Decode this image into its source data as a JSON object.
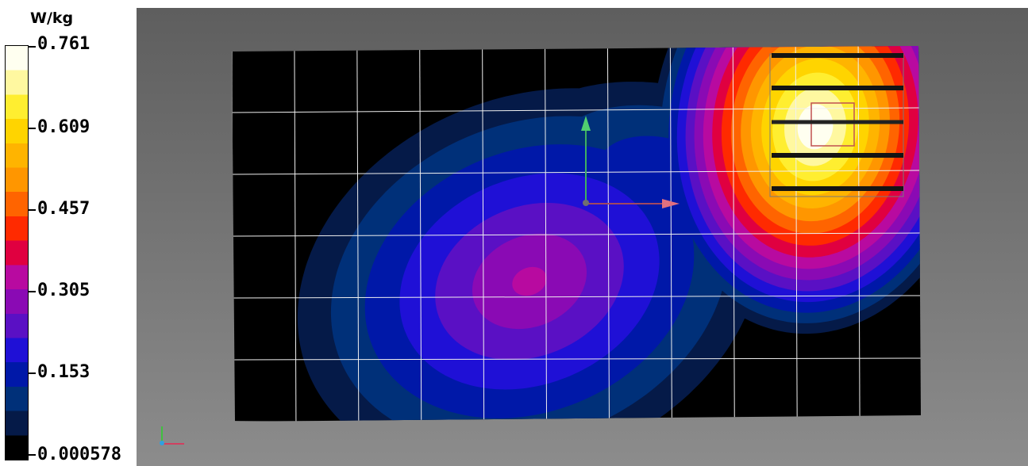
{
  "colorbar": {
    "unit": "W/kg",
    "tick_labels": [
      "0.761",
      "0.609",
      "0.457",
      "0.305",
      "0.153",
      "0.000578"
    ],
    "colors": [
      "#000000",
      "#051a48",
      "#003079",
      "#0018a8",
      "#1f10d6",
      "#5a10c4",
      "#8a0ab4",
      "#b80aa0",
      "#e00040",
      "#ff2a00",
      "#ff6400",
      "#ff9600",
      "#ffb400",
      "#ffd400",
      "#ffee30",
      "#fff8a0",
      "#fffff0"
    ]
  },
  "chart_data": {
    "type": "heatmap",
    "title": "",
    "value_unit": "W/kg",
    "value_range": [
      0.000578,
      0.761
    ],
    "colorbar_ticks": [
      0.761,
      0.609,
      0.457,
      0.305,
      0.153,
      0.000578
    ],
    "grid": true,
    "legend_position": "left",
    "hotspots": [
      {
        "location": "upper-right",
        "peak_value": 0.761
      },
      {
        "location": "center-left",
        "peak_value": 0.33
      }
    ]
  }
}
